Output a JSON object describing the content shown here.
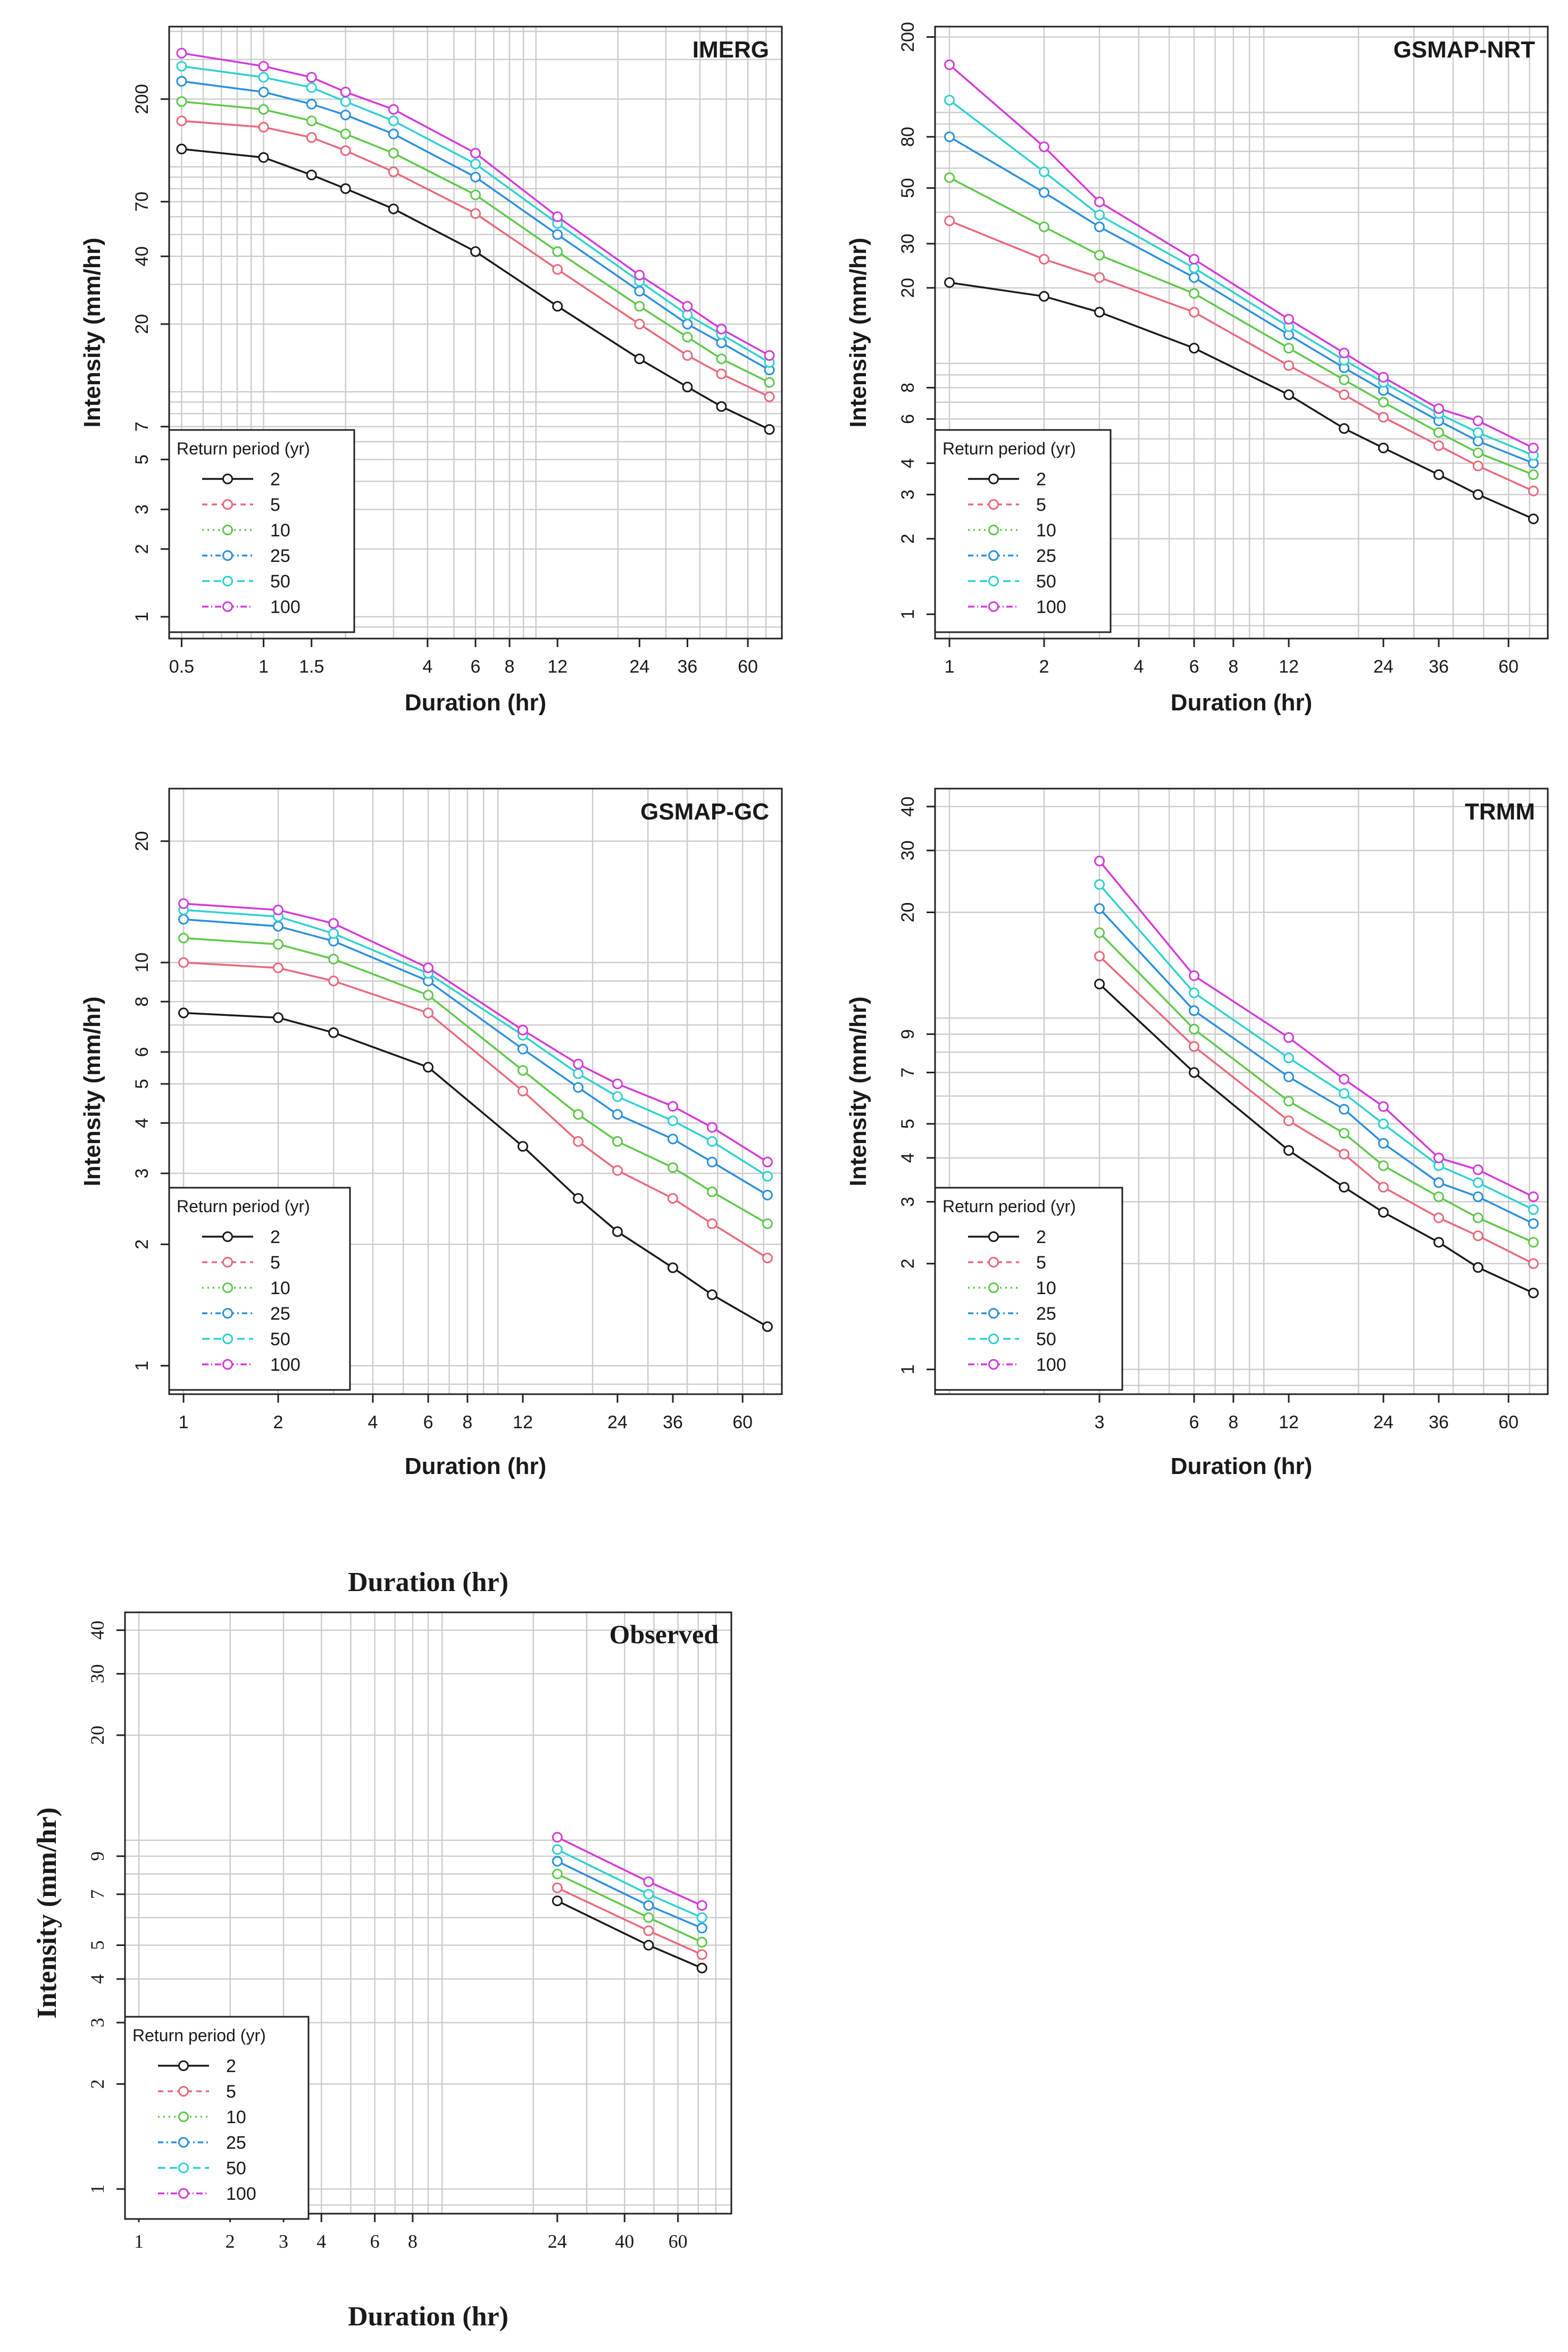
{
  "legend_title": "Return period (yr)",
  "series_colors": {
    "2": "#1a1a1a",
    "5": "#e8687a",
    "10": "#5ec84a",
    "25": "#2a8fdc",
    "50": "#2ed0d0",
    "100": "#d23ad8"
  },
  "chart_data": [
    {
      "id": "imerg",
      "type": "line",
      "title": "IMERG",
      "xlabel": "Duration (hr)",
      "ylabel": "Intensity (mm/hr)",
      "xlim": [
        0.45,
        80
      ],
      "ylim": [
        0.8,
        420
      ],
      "xticks": [
        0.5,
        1,
        1.5,
        4,
        6,
        8,
        12,
        24,
        36,
        60
      ],
      "yticks": [
        1,
        2,
        3,
        5,
        7,
        20,
        40,
        70,
        200
      ],
      "x": [
        0.5,
        1,
        1.5,
        2,
        3,
        6,
        12,
        24,
        36,
        48,
        72
      ],
      "series": [
        {
          "name": "2",
          "values": [
            120,
            110,
            92,
            80,
            65,
            42,
            24,
            14,
            10.5,
            8.6,
            6.8
          ]
        },
        {
          "name": "5",
          "values": [
            160,
            150,
            135,
            118,
            95,
            62,
            35,
            20,
            14.5,
            12,
            9.5
          ]
        },
        {
          "name": "10",
          "values": [
            195,
            180,
            160,
            140,
            115,
            75,
            42,
            24,
            17.5,
            14,
            11
          ]
        },
        {
          "name": "25",
          "values": [
            240,
            215,
            190,
            170,
            140,
            90,
            50,
            28,
            20,
            16.5,
            12.5
          ]
        },
        {
          "name": "50",
          "values": [
            280,
            250,
            225,
            195,
            160,
            103,
            56,
            31,
            22,
            18,
            13.5
          ]
        },
        {
          "name": "100",
          "values": [
            320,
            280,
            250,
            215,
            180,
            115,
            60,
            33,
            24,
            19,
            14.5
          ]
        }
      ]
    },
    {
      "id": "gsmap-nrt",
      "type": "line",
      "title": "GSMAP-NRT",
      "xlabel": "Duration (hr)",
      "ylabel": "Intensity (mm/hr)",
      "xlim": [
        0.9,
        80
      ],
      "ylim": [
        0.8,
        220
      ],
      "xticks": [
        1,
        2,
        4,
        6,
        8,
        12,
        24,
        36,
        60
      ],
      "yticks": [
        1,
        2,
        3,
        4,
        6,
        8,
        20,
        30,
        50,
        80,
        200
      ],
      "x": [
        1,
        2,
        3,
        6,
        12,
        18,
        24,
        36,
        48,
        72
      ],
      "series": [
        {
          "name": "2",
          "values": [
            21,
            18.5,
            16,
            11.5,
            7.5,
            5.5,
            4.6,
            3.6,
            3.0,
            2.4
          ]
        },
        {
          "name": "5",
          "values": [
            37,
            26,
            22,
            16,
            9.8,
            7.5,
            6.1,
            4.7,
            3.9,
            3.1
          ]
        },
        {
          "name": "10",
          "values": [
            55,
            35,
            27,
            19,
            11.5,
            8.6,
            7.0,
            5.3,
            4.4,
            3.6
          ]
        },
        {
          "name": "25",
          "values": [
            80,
            48,
            35,
            22,
            13,
            9.6,
            7.8,
            5.9,
            4.9,
            4.0
          ]
        },
        {
          "name": "50",
          "values": [
            112,
            58,
            39,
            24,
            14,
            10.3,
            8.4,
            6.3,
            5.3,
            4.3
          ]
        },
        {
          "name": "100",
          "values": [
            155,
            73,
            44,
            26,
            15,
            11.0,
            8.8,
            6.6,
            5.9,
            4.6
          ]
        }
      ]
    },
    {
      "id": "gsmap-gc",
      "type": "line",
      "title": "GSMAP-GC",
      "xlabel": "Duration (hr)",
      "ylabel": "Intensity (mm/hr)",
      "xlim": [
        0.9,
        80
      ],
      "ylim": [
        0.85,
        27
      ],
      "xticks": [
        1,
        2,
        4,
        6,
        8,
        12,
        24,
        36,
        60
      ],
      "yticks": [
        1,
        2,
        3,
        4,
        5,
        6,
        8,
        10,
        20
      ],
      "x": [
        1,
        2,
        3,
        6,
        12,
        18,
        24,
        36,
        48,
        72
      ],
      "series": [
        {
          "name": "2",
          "values": [
            7.5,
            7.3,
            6.7,
            5.5,
            3.5,
            2.6,
            2.15,
            1.75,
            1.5,
            1.25
          ]
        },
        {
          "name": "5",
          "values": [
            10,
            9.7,
            9.0,
            7.5,
            4.8,
            3.6,
            3.05,
            2.6,
            2.25,
            1.85
          ]
        },
        {
          "name": "10",
          "values": [
            11.5,
            11.1,
            10.2,
            8.3,
            5.4,
            4.2,
            3.6,
            3.1,
            2.7,
            2.25
          ]
        },
        {
          "name": "25",
          "values": [
            12.8,
            12.3,
            11.3,
            9.0,
            6.1,
            4.9,
            4.2,
            3.65,
            3.2,
            2.65
          ]
        },
        {
          "name": "50",
          "values": [
            13.5,
            13.0,
            11.8,
            9.4,
            6.6,
            5.3,
            4.65,
            4.05,
            3.6,
            2.95
          ]
        },
        {
          "name": "100",
          "values": [
            14.0,
            13.5,
            12.5,
            9.7,
            6.8,
            5.6,
            5.0,
            4.4,
            3.9,
            3.2
          ]
        }
      ]
    },
    {
      "id": "trmm",
      "type": "line",
      "title": "TRMM",
      "xlabel": "Duration (hr)",
      "ylabel": "Intensity (mm/hr)",
      "xlim": [
        0.9,
        80
      ],
      "ylim": [
        0.85,
        45
      ],
      "xticks": [
        3,
        6,
        8,
        12,
        24,
        36,
        60
      ],
      "yticks": [
        1,
        2,
        3,
        4,
        5,
        7,
        9,
        20,
        30,
        40
      ],
      "x": [
        3,
        6,
        12,
        18,
        24,
        36,
        48,
        72
      ],
      "series": [
        {
          "name": "2",
          "values": [
            12.5,
            7.0,
            4.2,
            3.3,
            2.8,
            2.3,
            1.95,
            1.65
          ]
        },
        {
          "name": "5",
          "values": [
            15,
            8.3,
            5.1,
            4.1,
            3.3,
            2.7,
            2.4,
            2.0
          ]
        },
        {
          "name": "10",
          "values": [
            17.5,
            9.3,
            5.8,
            4.7,
            3.8,
            3.1,
            2.7,
            2.3
          ]
        },
        {
          "name": "25",
          "values": [
            20.5,
            10.5,
            6.8,
            5.5,
            4.4,
            3.4,
            3.1,
            2.6
          ]
        },
        {
          "name": "50",
          "values": [
            24,
            11.8,
            7.7,
            6.1,
            5.0,
            3.8,
            3.4,
            2.85
          ]
        },
        {
          "name": "100",
          "values": [
            28,
            13.2,
            8.8,
            6.7,
            5.6,
            4.0,
            3.7,
            3.1
          ]
        }
      ]
    },
    {
      "id": "observed",
      "type": "line",
      "title": "Observed",
      "xlabel": "Duration (hr)",
      "ylabel": "Intensity (mm/hr)",
      "header_label": "Duration (hr)",
      "xlim": [
        0.9,
        90
      ],
      "ylim": [
        0.85,
        45
      ],
      "xticks": [
        1,
        2,
        3,
        4,
        6,
        8,
        24,
        40,
        60
      ],
      "yticks": [
        1,
        2,
        3,
        4,
        5,
        7,
        9,
        20,
        30,
        40
      ],
      "x": [
        24,
        48,
        72
      ],
      "series": [
        {
          "name": "2",
          "values": [
            6.7,
            5.0,
            4.3
          ]
        },
        {
          "name": "5",
          "values": [
            7.3,
            5.5,
            4.7
          ]
        },
        {
          "name": "10",
          "values": [
            8.0,
            6.0,
            5.1
          ]
        },
        {
          "name": "25",
          "values": [
            8.7,
            6.5,
            5.6
          ]
        },
        {
          "name": "50",
          "values": [
            9.4,
            7.0,
            6.0
          ]
        },
        {
          "name": "100",
          "values": [
            10.2,
            7.6,
            6.5
          ]
        }
      ]
    }
  ]
}
